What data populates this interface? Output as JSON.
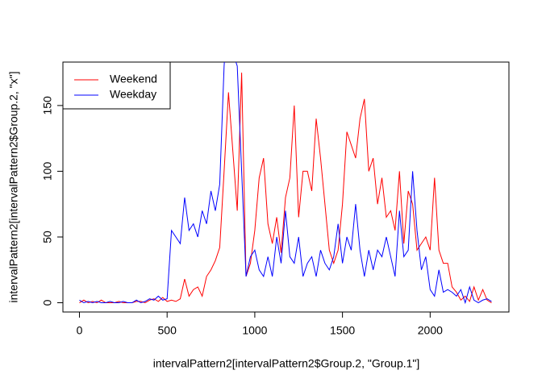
{
  "chart_data": {
    "type": "line",
    "x_label": "intervalPattern2[intervalPattern2$Group.2, \"Group.1\"]",
    "y_label": "intervalPattern2[intervalPattern2$Group.2, \"x\"]",
    "x": [
      0,
      25,
      50,
      75,
      100,
      125,
      150,
      175,
      200,
      225,
      250,
      275,
      300,
      325,
      350,
      375,
      400,
      425,
      450,
      475,
      500,
      525,
      550,
      575,
      600,
      625,
      650,
      675,
      700,
      725,
      750,
      775,
      800,
      825,
      850,
      875,
      900,
      925,
      950,
      975,
      1000,
      1025,
      1050,
      1075,
      1100,
      1125,
      1150,
      1175,
      1200,
      1225,
      1250,
      1275,
      1300,
      1325,
      1350,
      1375,
      1400,
      1425,
      1450,
      1475,
      1500,
      1525,
      1550,
      1575,
      1600,
      1625,
      1650,
      1675,
      1700,
      1725,
      1750,
      1775,
      1800,
      1825,
      1850,
      1875,
      1900,
      1925,
      1950,
      1975,
      2000,
      2025,
      2050,
      2075,
      2100,
      2125,
      2150,
      2175,
      2200,
      2225,
      2250,
      2275,
      2300,
      2325,
      2350
    ],
    "series": [
      {
        "name": "Weekend",
        "color": "#ff0000",
        "values": [
          0,
          2,
          0,
          1,
          0,
          2,
          0,
          0,
          0,
          1,
          0,
          0,
          0,
          1,
          1,
          0,
          2,
          3,
          1,
          4,
          1,
          2,
          1,
          3,
          18,
          5,
          10,
          12,
          5,
          20,
          25,
          32,
          42,
          100,
          160,
          115,
          70,
          175,
          20,
          30,
          55,
          95,
          110,
          60,
          45,
          65,
          38,
          80,
          95,
          150,
          65,
          100,
          100,
          85,
          140,
          110,
          75,
          40,
          30,
          40,
          75,
          130,
          120,
          110,
          140,
          155,
          100,
          110,
          75,
          95,
          65,
          70,
          55,
          100,
          45,
          85,
          75,
          40,
          45,
          50,
          40,
          95,
          40,
          30,
          30,
          12,
          8,
          2,
          5,
          1,
          12,
          2,
          10,
          2,
          0
        ]
      },
      {
        "name": "Weekday",
        "color": "#0000ff",
        "values": [
          2,
          0,
          1,
          0,
          1,
          0,
          0,
          1,
          0,
          0,
          1,
          0,
          0,
          2,
          0,
          1,
          3,
          2,
          5,
          2,
          3,
          55,
          50,
          45,
          80,
          55,
          60,
          50,
          70,
          60,
          85,
          70,
          90,
          180,
          230,
          190,
          180,
          100,
          20,
          35,
          40,
          25,
          20,
          35,
          20,
          50,
          30,
          70,
          35,
          30,
          50,
          20,
          30,
          35,
          20,
          40,
          30,
          25,
          35,
          60,
          30,
          50,
          40,
          75,
          40,
          20,
          40,
          25,
          40,
          35,
          50,
          35,
          20,
          70,
          35,
          40,
          100,
          55,
          25,
          35,
          10,
          5,
          25,
          8,
          10,
          8,
          5,
          10,
          0,
          12,
          2,
          0,
          2,
          3,
          1
        ]
      }
    ],
    "xlim": [
      -94.2,
      2449.2
    ],
    "xticks": [
      0,
      500,
      1000,
      1500,
      2000
    ],
    "ylim": [
      -7.04,
      183.04
    ],
    "yticks": [
      0,
      50,
      100,
      150
    ],
    "legend": "top-left"
  }
}
